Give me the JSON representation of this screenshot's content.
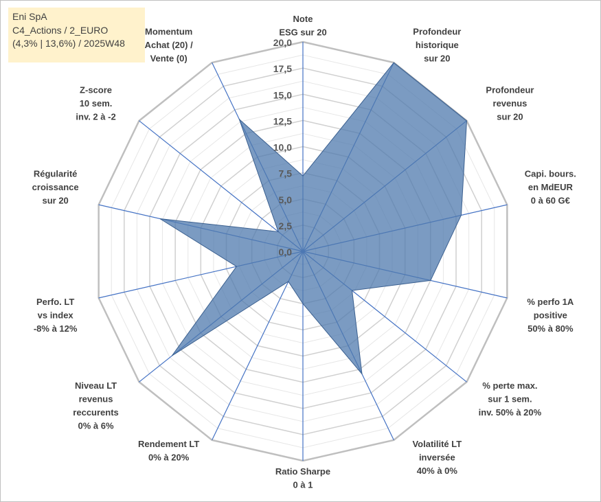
{
  "info": {
    "line1": "Eni SpA",
    "line2": "C4_Actions / 2_EURO",
    "line3": "(4,3% | 13,6%) / 2025W48"
  },
  "chart_data": {
    "type": "radar",
    "rmin": 0,
    "rmax": 20,
    "ticks": [
      "0,0",
      "2,5",
      "5,0",
      "7,5",
      "10,0",
      "12,5",
      "15,0",
      "17,5",
      "20,0"
    ],
    "tick_values": [
      0,
      2.5,
      5,
      7.5,
      10,
      12.5,
      15,
      17.5,
      20
    ],
    "axes": [
      {
        "label": [
          "Note",
          "ESG sur 20"
        ],
        "value": 7.2
      },
      {
        "label": [
          "Profondeur",
          "historique",
          "sur 20"
        ],
        "value": 20
      },
      {
        "label": [
          "Profondeur",
          "revenus",
          "sur 20"
        ],
        "value": 20
      },
      {
        "label": [
          "Capi. bours.",
          "en MdEUR",
          "0 à 60 G€"
        ],
        "value": 15.5
      },
      {
        "label": [
          "% perfo 1A",
          "positive",
          "50% à 80%"
        ],
        "value": 12.5
      },
      {
        "label": [
          "% perte max.",
          "sur 1 sem.",
          "inv. 50% à 20%"
        ],
        "value": 6.0
      },
      {
        "label": [
          "Volatilité LT",
          "inversée",
          "40% à 0%"
        ],
        "value": 13.0
      },
      {
        "label": [
          "Ratio Sharpe",
          "0 à 1"
        ],
        "value": 5.0
      },
      {
        "label": [
          "Rendement LT",
          "0% à 20%"
        ],
        "value": 3.2
      },
      {
        "label": [
          "Niveau LT",
          "revenus",
          "reccurents",
          "0% à 6%"
        ],
        "value": 16.0
      },
      {
        "label": [
          "Perfo. LT",
          "vs index",
          "-8% à 12%"
        ],
        "value": 6.5
      },
      {
        "label": [
          "Régularité",
          "croissance",
          "sur 20"
        ],
        "value": 14.0
      },
      {
        "label": [
          "Z-score",
          "10 sem.",
          "inv. 2 à -2"
        ],
        "value": 3.0
      },
      {
        "label": [
          "Momentum",
          "Achat (20) /",
          "Vente (0)"
        ],
        "value": 14.0
      }
    ],
    "colors": {
      "fill": "#4f7aad",
      "axis_line": "#4472c4",
      "outer_grid": "#bfbfbf",
      "inner_grid": "#e6e6e6"
    }
  }
}
